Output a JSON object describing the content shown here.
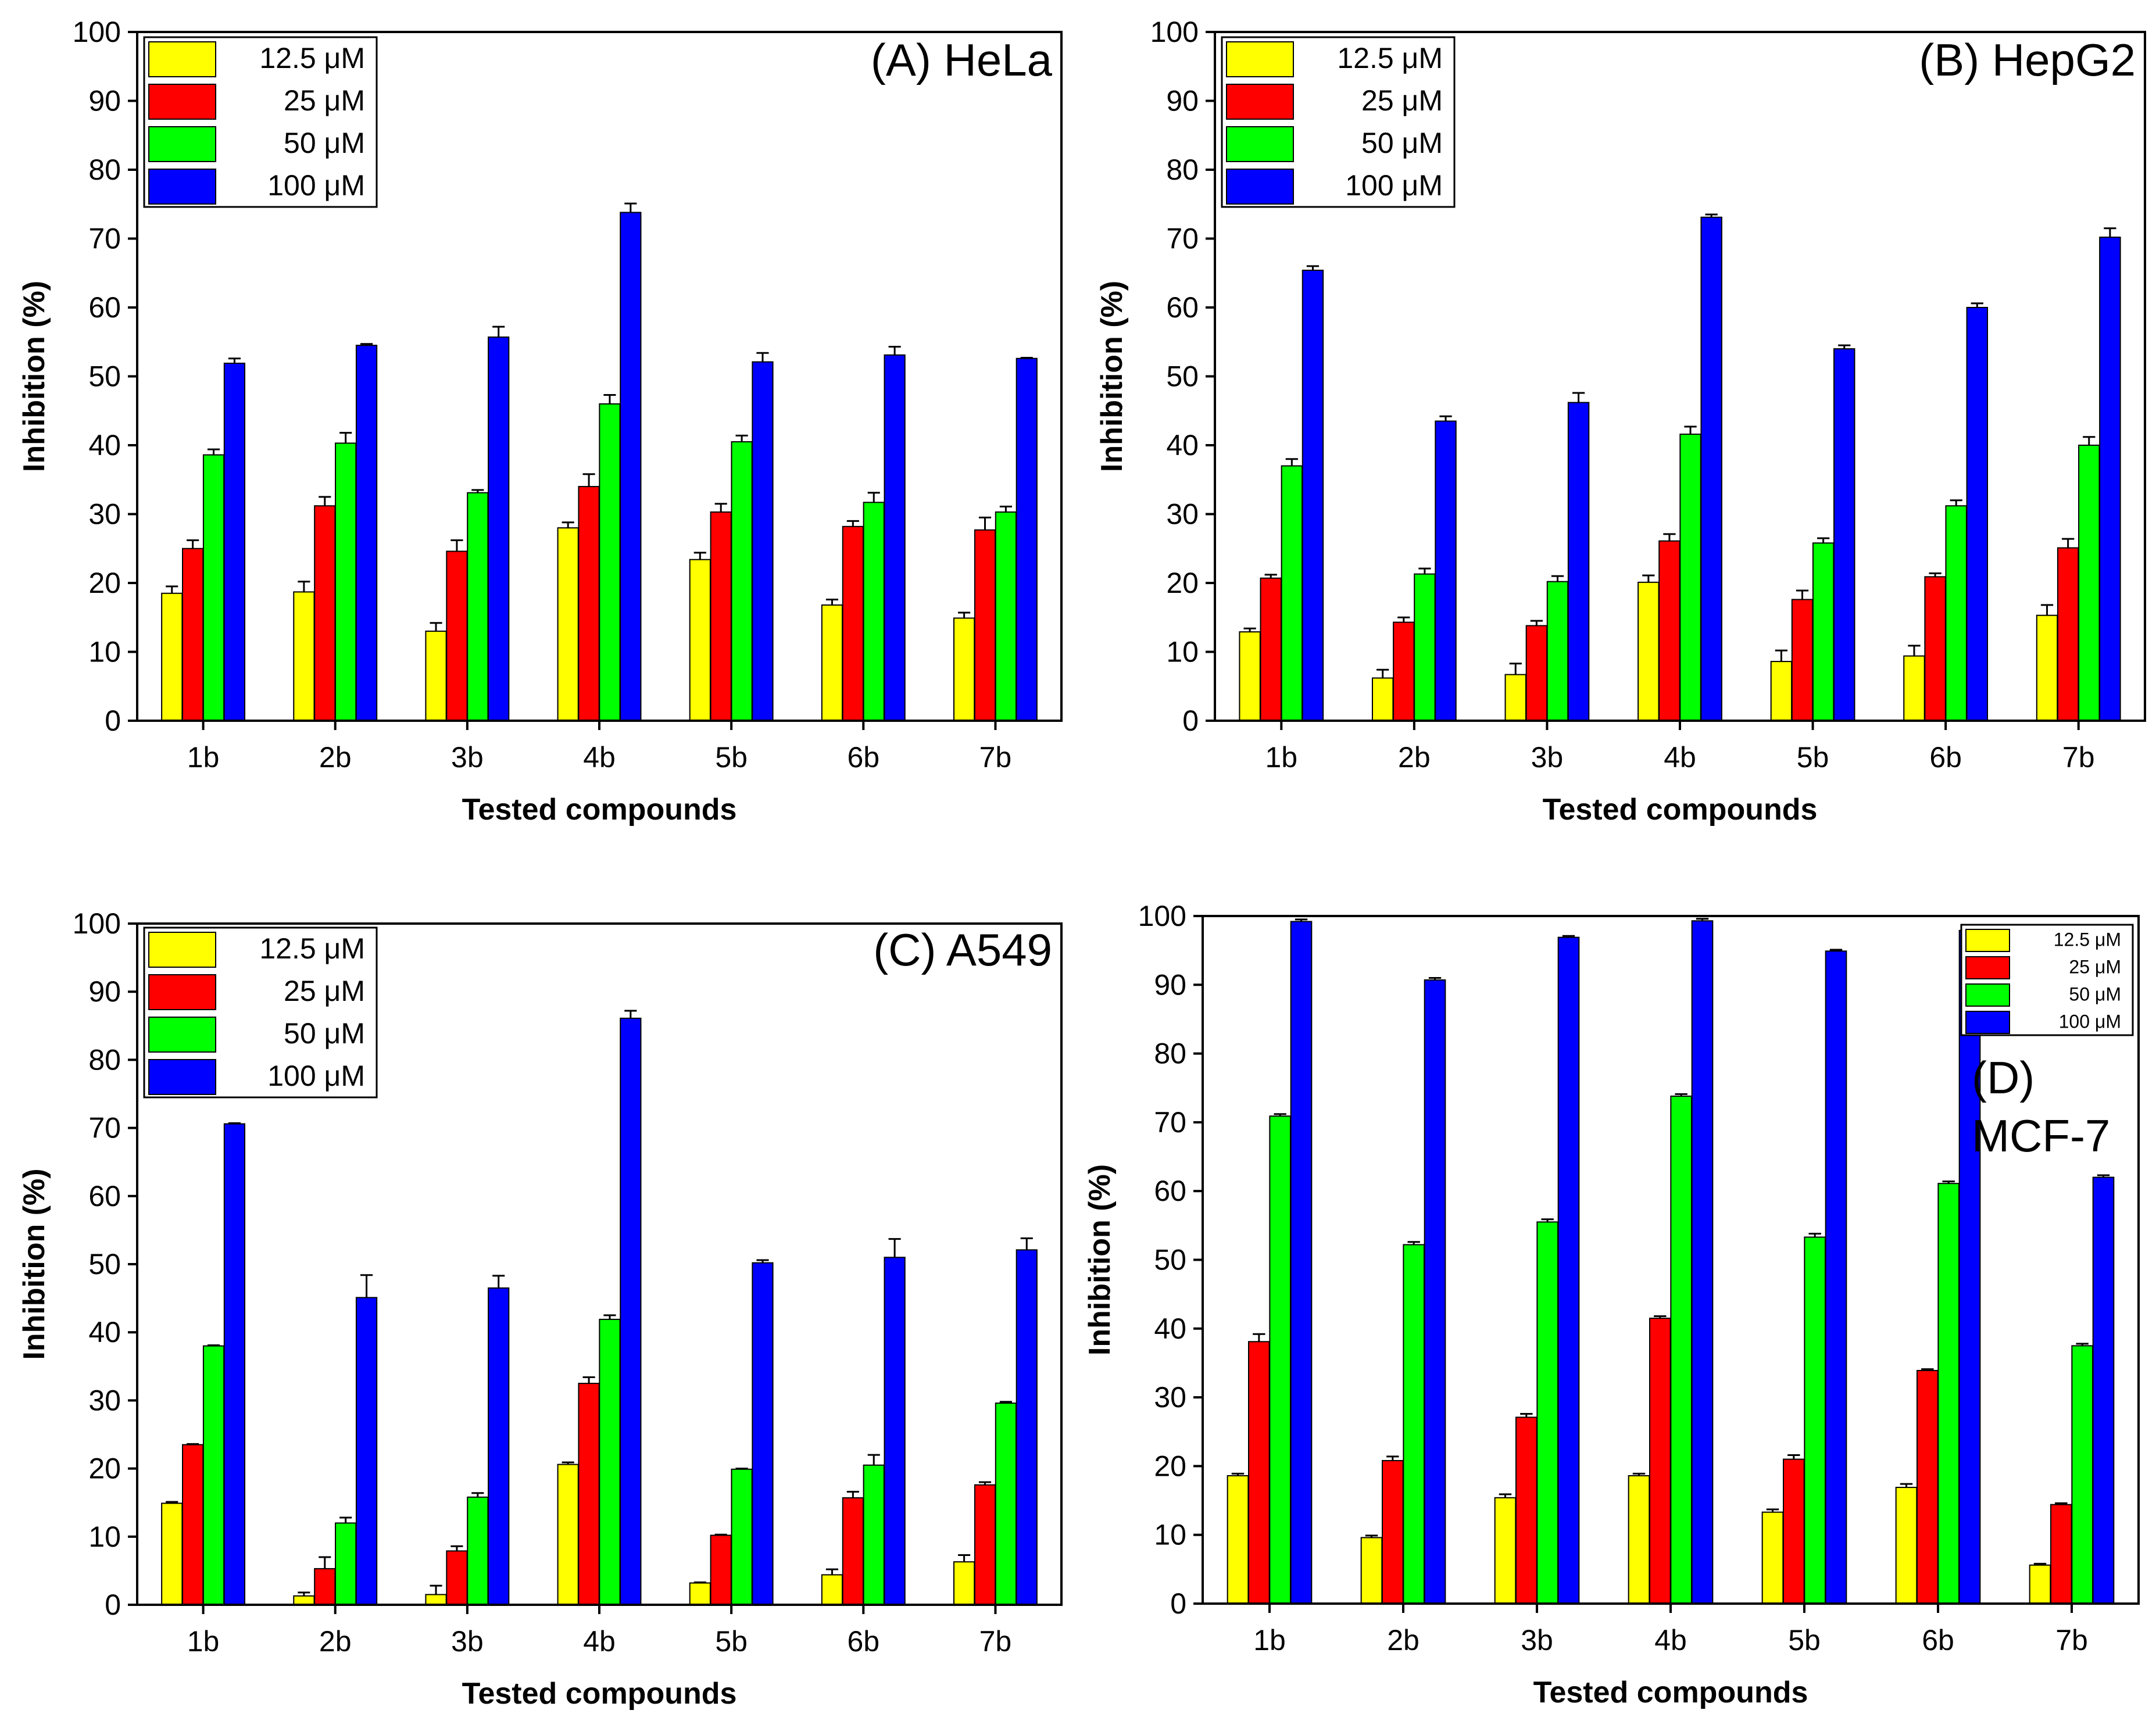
{
  "chart_data": [
    {
      "type": "bar",
      "panel_label": "(A) HeLa",
      "xlabel": "Tested compounds",
      "ylabel": "Inhibition (%)",
      "ylim": [
        0,
        100
      ],
      "yticks": [
        "0",
        "10",
        "20",
        "30",
        "40",
        "50",
        "60",
        "70",
        "80",
        "90",
        "100"
      ],
      "categories": [
        "1b",
        "2b",
        "3b",
        "4b",
        "5b",
        "6b",
        "7b"
      ],
      "legend_position": "top-left",
      "series": [
        {
          "name": "12.5 μM",
          "color": "#ffff00",
          "values": [
            18.5,
            18.7,
            13.0,
            28.0,
            23.4,
            16.8,
            14.9
          ],
          "errors": [
            1.0,
            1.5,
            1.2,
            0.8,
            1.0,
            0.8,
            0.8
          ]
        },
        {
          "name": "25 μM",
          "color": "#ff0000",
          "values": [
            25.0,
            31.2,
            24.6,
            34.0,
            30.3,
            28.2,
            27.7
          ],
          "errors": [
            1.2,
            1.3,
            1.6,
            1.8,
            1.2,
            0.8,
            1.8
          ]
        },
        {
          "name": "50 μM",
          "color": "#00ff00",
          "values": [
            38.6,
            40.3,
            33.1,
            46.0,
            40.5,
            31.7,
            30.3
          ],
          "errors": [
            0.8,
            1.5,
            0.4,
            1.3,
            0.9,
            1.4,
            0.8
          ]
        },
        {
          "name": "100 μM",
          "color": "#0000ff",
          "values": [
            51.9,
            54.5,
            55.7,
            73.8,
            52.1,
            53.1,
            52.6
          ],
          "errors": [
            0.7,
            0.2,
            1.5,
            1.3,
            1.3,
            1.2,
            0.1
          ]
        }
      ]
    },
    {
      "type": "bar",
      "panel_label": "(B) HepG2",
      "xlabel": "Tested compounds",
      "ylabel": "Inhibition (%)",
      "ylim": [
        0,
        100
      ],
      "yticks": [
        "0",
        "10",
        "20",
        "30",
        "40",
        "50",
        "60",
        "70",
        "80",
        "90",
        "100"
      ],
      "categories": [
        "1b",
        "2b",
        "3b",
        "4b",
        "5b",
        "6b",
        "7b"
      ],
      "legend_position": "top-left",
      "series": [
        {
          "name": "12.5 μM",
          "color": "#ffff00",
          "values": [
            12.9,
            6.2,
            6.7,
            20.1,
            8.6,
            9.4,
            15.3
          ],
          "errors": [
            0.5,
            1.2,
            1.6,
            1.0,
            1.6,
            1.5,
            1.5
          ]
        },
        {
          "name": "25 μM",
          "color": "#ff0000",
          "values": [
            20.7,
            14.3,
            13.8,
            26.1,
            17.6,
            20.9,
            25.1
          ],
          "errors": [
            0.5,
            0.7,
            0.7,
            1.0,
            1.3,
            0.5,
            1.3
          ]
        },
        {
          "name": "50 μM",
          "color": "#00ff00",
          "values": [
            37.0,
            21.3,
            20.2,
            41.6,
            25.8,
            31.2,
            40.0
          ],
          "errors": [
            1.0,
            0.8,
            0.8,
            1.1,
            0.7,
            0.8,
            1.2
          ]
        },
        {
          "name": "100 μM",
          "color": "#0000ff",
          "values": [
            65.4,
            43.5,
            46.2,
            73.1,
            54.0,
            60.0,
            70.2
          ],
          "errors": [
            0.6,
            0.7,
            1.4,
            0.4,
            0.5,
            0.6,
            1.3
          ]
        }
      ]
    },
    {
      "type": "bar",
      "panel_label": "(C) A549",
      "xlabel": "Tested compounds",
      "ylabel": "Inhibition (%)",
      "ylim": [
        0,
        100
      ],
      "yticks": [
        "0",
        "10",
        "20",
        "30",
        "40",
        "50",
        "60",
        "70",
        "80",
        "90",
        "100"
      ],
      "categories": [
        "1b",
        "2b",
        "3b",
        "4b",
        "5b",
        "6b",
        "7b"
      ],
      "legend_position": "top-left",
      "series": [
        {
          "name": "12.5 μM",
          "color": "#ffff00",
          "values": [
            14.9,
            1.3,
            1.5,
            20.6,
            3.2,
            4.4,
            6.3
          ],
          "errors": [
            0.2,
            0.5,
            1.3,
            0.3,
            0.1,
            0.8,
            1.0
          ]
        },
        {
          "name": "25 μM",
          "color": "#ff0000",
          "values": [
            23.5,
            5.3,
            7.9,
            32.5,
            10.2,
            15.7,
            17.6
          ],
          "errors": [
            0.1,
            1.7,
            0.7,
            0.9,
            0.1,
            0.9,
            0.4
          ]
        },
        {
          "name": "50 μM",
          "color": "#00ff00",
          "values": [
            38.0,
            12.0,
            15.8,
            41.9,
            19.9,
            20.5,
            29.6
          ],
          "errors": [
            0.1,
            0.8,
            0.6,
            0.6,
            0.1,
            1.5,
            0.2
          ]
        },
        {
          "name": "100 μM",
          "color": "#0000ff",
          "values": [
            70.6,
            45.1,
            46.5,
            86.1,
            50.2,
            51.0,
            52.1
          ],
          "errors": [
            0.1,
            3.3,
            1.8,
            1.1,
            0.4,
            2.7,
            1.7
          ]
        }
      ]
    },
    {
      "type": "bar",
      "panel_label_lines": [
        "(D)",
        "MCF-7"
      ],
      "xlabel": "Tested compounds",
      "ylabel": "Inhibition (%)",
      "ylim": [
        0,
        100
      ],
      "yticks": [
        "0",
        "10",
        "20",
        "30",
        "40",
        "50",
        "60",
        "70",
        "80",
        "90",
        "100"
      ],
      "categories": [
        "1b",
        "2b",
        "3b",
        "4b",
        "5b",
        "6b",
        "7b"
      ],
      "legend_position": "top-right",
      "series": [
        {
          "name": "12.5 μM",
          "color": "#ffff00",
          "values": [
            18.6,
            9.6,
            15.4,
            18.6,
            13.3,
            16.9,
            5.6
          ],
          "errors": [
            0.3,
            0.3,
            0.5,
            0.3,
            0.4,
            0.5,
            0.2
          ]
        },
        {
          "name": "25 μM",
          "color": "#ff0000",
          "values": [
            38.1,
            20.8,
            27.1,
            41.5,
            21.0,
            33.9,
            14.4
          ],
          "errors": [
            1.1,
            0.6,
            0.5,
            0.3,
            0.6,
            0.2,
            0.2
          ]
        },
        {
          "name": "50 μM",
          "color": "#00ff00",
          "values": [
            70.9,
            52.2,
            55.5,
            73.8,
            53.3,
            61.1,
            37.5
          ],
          "errors": [
            0.3,
            0.4,
            0.4,
            0.3,
            0.5,
            0.3,
            0.3
          ]
        },
        {
          "name": "100 μM",
          "color": "#0000ff",
          "values": [
            99.2,
            90.7,
            96.9,
            99.3,
            94.9,
            97.9,
            62.0
          ],
          "errors": [
            0.3,
            0.3,
            0.2,
            0.3,
            0.2,
            0.3,
            0.3
          ]
        }
      ]
    }
  ]
}
